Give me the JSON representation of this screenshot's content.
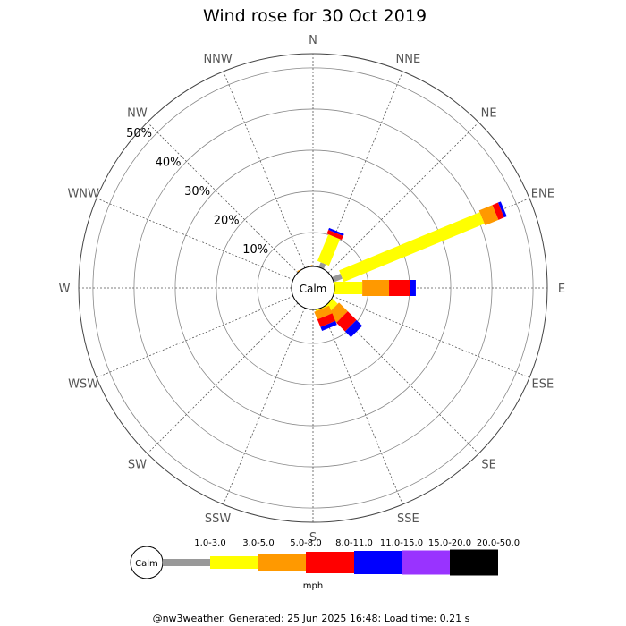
{
  "chart_data": {
    "type": "wind-rose",
    "title": "Wind rose for 30 Oct 2019",
    "directions": [
      "N",
      "NNE",
      "NE",
      "ENE",
      "E",
      "ESE",
      "SE",
      "SSE",
      "S",
      "SSW",
      "SW",
      "WSW",
      "W",
      "WNW",
      "NW",
      "NNW"
    ],
    "ring_labels": [
      "10%",
      "20%",
      "30%",
      "40%",
      "50%"
    ],
    "rmax_percent": 50,
    "calm_label": "Calm",
    "unit": "mph",
    "speed_bins": [
      {
        "label": "1.0-3.0",
        "color": "#999999"
      },
      {
        "label": "3.0-5.0",
        "color": "#ffff00"
      },
      {
        "label": "5.0-8.0",
        "color": "#ff9900"
      },
      {
        "label": "8.0-11.0",
        "color": "#ff0000"
      },
      {
        "label": "11.0-15.0",
        "color": "#0000ff"
      },
      {
        "label": "15.0-20.0",
        "color": "#9933ff"
      },
      {
        "label": "20.0-50.0",
        "color": "#000000"
      }
    ],
    "series": [
      {
        "direction": "NNE",
        "segments": [
          3.0,
          7.0,
          0,
          1.0,
          0.5,
          0,
          0
        ]
      },
      {
        "direction": "ENE",
        "segments": [
          4.0,
          37.0,
          3.5,
          1.5,
          0.7,
          0,
          0
        ]
      },
      {
        "direction": "E",
        "segments": [
          1.5,
          7.0,
          6.5,
          5.0,
          1.5,
          0,
          0
        ]
      },
      {
        "direction": "ESE",
        "segments": [
          0,
          0,
          0,
          0,
          0,
          0,
          0
        ]
      },
      {
        "direction": "SE",
        "segments": [
          0.5,
          3.0,
          3.0,
          3.0,
          2.0,
          0,
          0
        ]
      },
      {
        "direction": "SSE",
        "segments": [
          0.5,
          1.5,
          2.0,
          2.0,
          1.0,
          0,
          0
        ]
      },
      {
        "direction": "NNW",
        "segments": [
          0,
          1.0,
          0.8,
          0,
          0,
          0,
          0
        ]
      },
      {
        "direction": "N",
        "segments": [
          0,
          0.5,
          0.5,
          0,
          0,
          0,
          0
        ]
      }
    ]
  },
  "footer": "@nw3weather. Generated: 25 Jun 2025 16:48; Load time: 0.21 s"
}
